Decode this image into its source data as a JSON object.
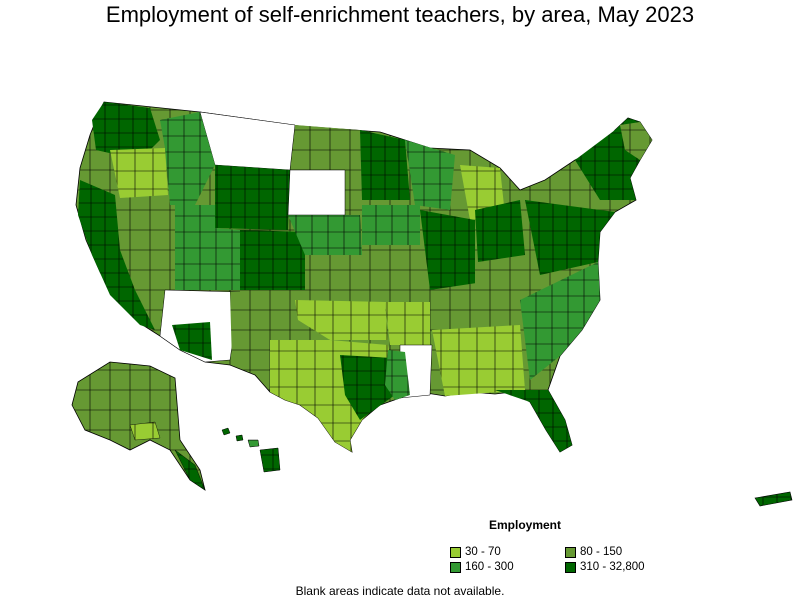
{
  "title": "Employment of self-enrichment teachers, by area, May 2023",
  "legend": {
    "title": "Employment",
    "items": [
      {
        "label": "30 - 70",
        "color": "#99cc33"
      },
      {
        "label": "80 - 150",
        "color": "#669933"
      },
      {
        "label": "160 - 300",
        "color": "#339933"
      },
      {
        "label": "310 - 32,800",
        "color": "#006600"
      }
    ]
  },
  "footnote": "Blank areas indicate data not available.",
  "colors": {
    "no_data": "#ffffff",
    "border": "#000000"
  }
}
